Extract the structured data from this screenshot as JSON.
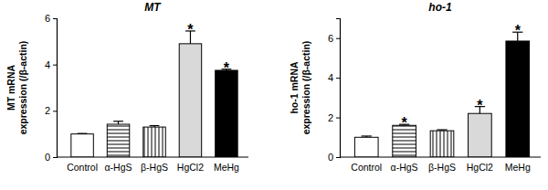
{
  "chart_data": [
    {
      "type": "bar",
      "title": "MT",
      "y_label": [
        "MT mRNA",
        "expression (/β-actin)"
      ],
      "categories": [
        "Control",
        "α-HgS",
        "β-HgS",
        "HgCl2",
        "MeHg"
      ],
      "values": [
        1.0,
        1.42,
        1.3,
        4.9,
        3.75
      ],
      "errors": [
        0.02,
        0.13,
        0.06,
        0.55,
        0.05
      ],
      "annotations": [
        null,
        null,
        null,
        "*",
        "*"
      ],
      "colors": [
        "#ffffff",
        "#ffffff",
        "#ffffff",
        "#d9d9d9",
        "#000000"
      ],
      "ylim": [
        0,
        6
      ],
      "yticks": [
        0,
        2,
        4,
        6
      ],
      "grid": false
    },
    {
      "type": "bar",
      "title": "ho-1",
      "y_label": [
        "ho-1 mRNA",
        "expression (/β-actin)"
      ],
      "categories": [
        "Control",
        "α-HgS",
        "β-HgS",
        "HgCl2",
        "MeHg"
      ],
      "values": [
        1.0,
        1.6,
        1.33,
        2.2,
        5.85
      ],
      "errors": [
        0.06,
        0.05,
        0.05,
        0.35,
        0.45
      ],
      "annotations": [
        null,
        "*",
        null,
        "*",
        "*"
      ],
      "colors": [
        "#ffffff",
        "#ffffff",
        "#ffffff",
        "#d9d9d9",
        "#000000"
      ],
      "ylim": [
        0,
        7
      ],
      "yticks": [
        0,
        2,
        4,
        6
      ],
      "grid": false
    }
  ]
}
